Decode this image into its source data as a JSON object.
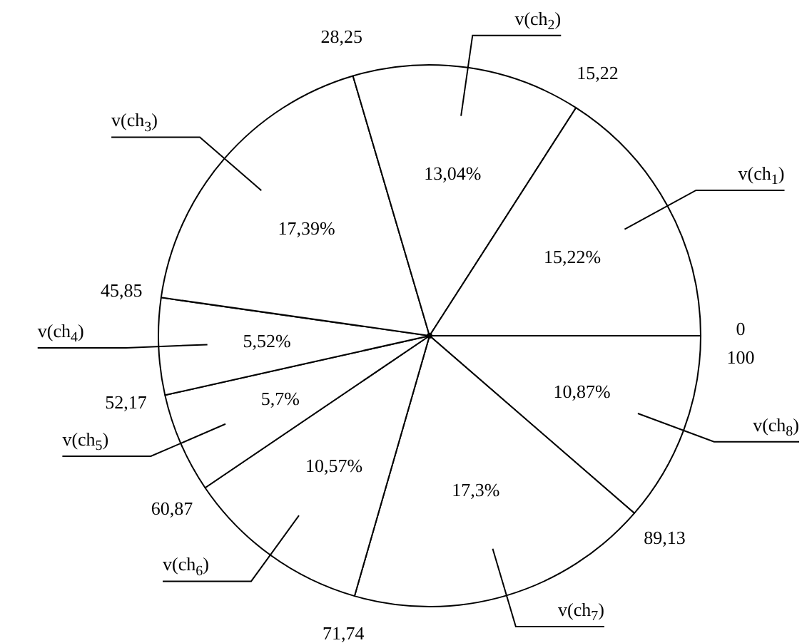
{
  "chart_data": {
    "type": "pie",
    "categories": [
      "v(ch$_{1}$)",
      "v(ch$_{2}$)",
      "v(ch$_{3}$)",
      "v(ch$_{4}$)",
      "v(ch$_{5}$)",
      "v(ch$_{6}$)",
      "v(ch$_{7}$)",
      "v(ch$_{8}$)"
    ],
    "values": [
      15.22,
      13.04,
      17.39,
      5.52,
      5.7,
      10.57,
      17.3,
      10.87
    ],
    "value_labels": [
      "15,22%",
      "13,04%",
      "17,39%",
      "5,52%",
      "5,7%",
      "10,57%",
      "17,3%",
      "10,87%"
    ],
    "colors": [
      "#ffffff",
      "#ffffff",
      "#ffffff",
      "#ffffff",
      "#ffffff",
      "#ffffff",
      "#ffffff",
      "#ffffff"
    ],
    "annotations": [
      "0",
      "15,22",
      "28,25",
      "45,85",
      "52,17",
      "60,87",
      "71,74",
      "89,13",
      "100"
    ],
    "legend": false
  }
}
